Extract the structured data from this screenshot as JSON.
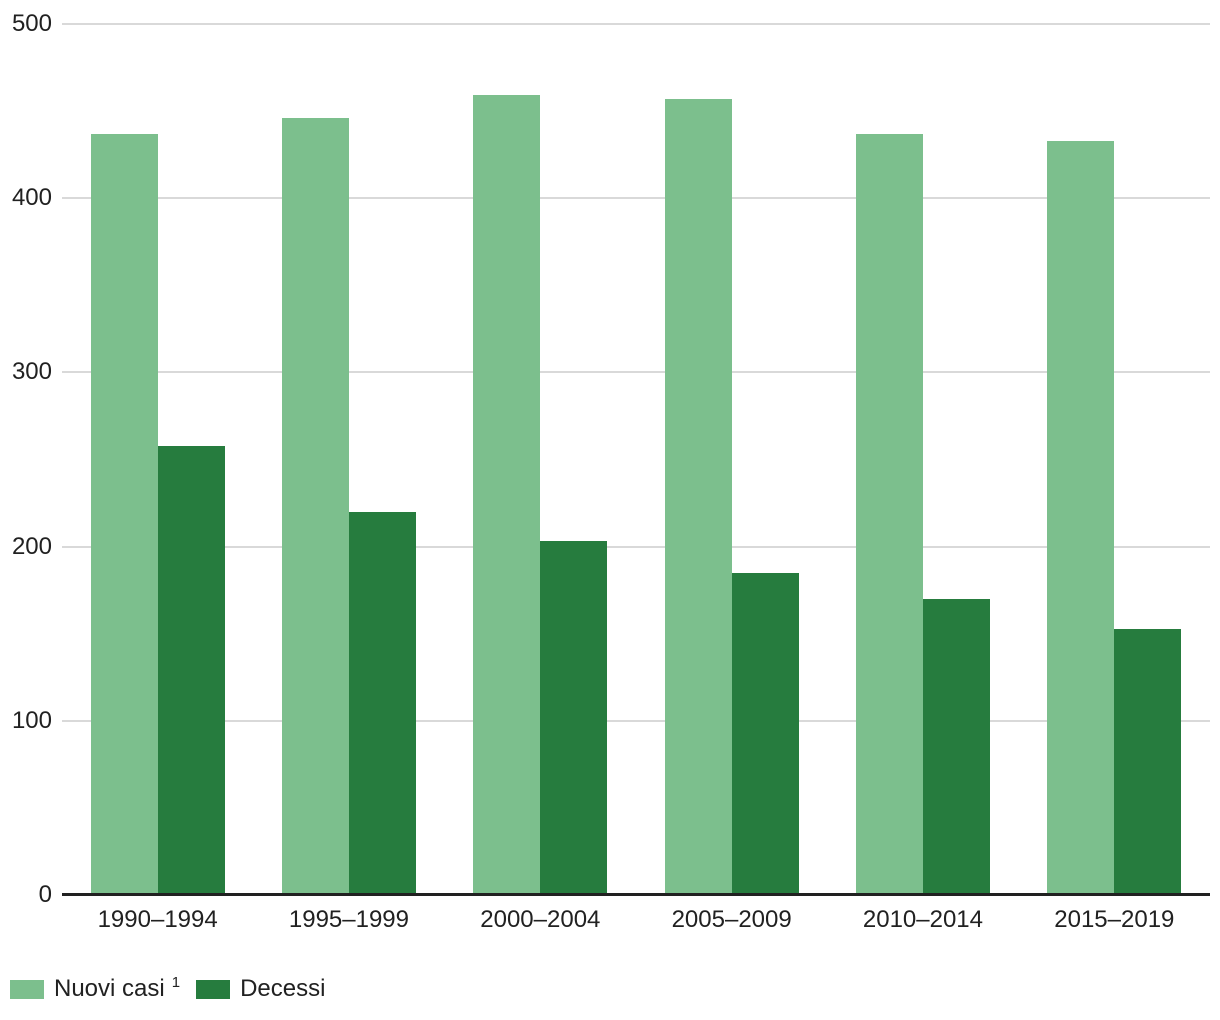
{
  "chart_data": {
    "type": "bar",
    "categories": [
      "1990–1994",
      "1995–1999",
      "2000–2004",
      "2005–2009",
      "2010–2014",
      "2015–2019"
    ],
    "series": [
      {
        "name": "Nuovi casi",
        "footnote_marker": "1",
        "color": "#7CBF8D",
        "values": [
          437,
          446,
          459,
          457,
          437,
          433
        ]
      },
      {
        "name": "Decessi",
        "footnote_marker": "",
        "color": "#267C3E",
        "values": [
          258,
          220,
          203,
          185,
          170,
          153
        ]
      }
    ],
    "title": "",
    "xlabel": "",
    "ylabel": "",
    "ylim": [
      0,
      500
    ],
    "ytick_interval": 100,
    "yticks": [
      "0",
      "100",
      "200",
      "300",
      "400",
      "500"
    ],
    "grid": true,
    "legend_position": "bottom-left"
  },
  "style": {
    "grid_color": "#d9d9d9",
    "axis_color": "#212121",
    "text_color": "#212121",
    "background": "#ffffff"
  }
}
